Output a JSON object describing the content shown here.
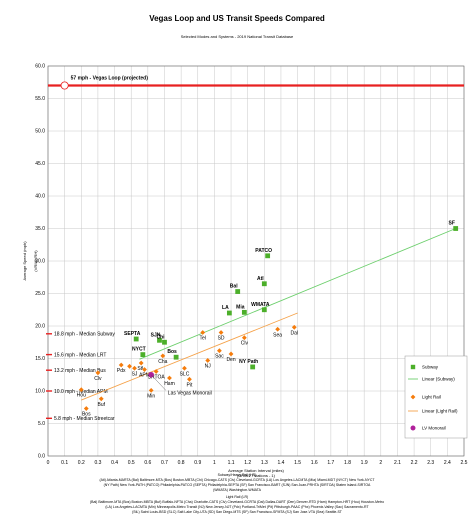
{
  "chart_data": {
    "type": "scatter",
    "title": "Vegas Loop and US Transit Speeds Compared",
    "subtitle": "Selected Modes and Systems - 2019 National Transit Database",
    "xlabel": "Average Station Interval (miles)",
    "xlabel2": "(DRM/2 / stations - 1)",
    "ylabel": "Average Speed (mph)",
    "ylabel2": "(VRM/VRH)",
    "xlim": [
      0,
      2.5
    ],
    "ylim": [
      0,
      60
    ],
    "xticks": [
      "0",
      "0.1",
      "0.2",
      "0.3",
      "0.4",
      "0.5",
      "0.6",
      "0.7",
      "0.8",
      "0.9",
      "1",
      "1.1",
      "1.2",
      "1.3",
      "1.4",
      "1.5",
      "1.6",
      "1.7",
      "1.8",
      "1.9",
      "2",
      "2.1",
      "2.2",
      "2.3",
      "2.4",
      "2.5"
    ],
    "yticks": [
      "0.0",
      "5.0",
      "10.0",
      "15.0",
      "20.0",
      "25.0",
      "30.0",
      "35.0",
      "40.0",
      "45.0",
      "50.0",
      "55.0",
      "60.0"
    ],
    "grid": true,
    "legend_position": "right",
    "series": [
      {
        "name": "Subway",
        "color": "#4caf2a",
        "points": [
          {
            "x": 0.53,
            "y": 18.0,
            "label": "SEPTA"
          },
          {
            "x": 0.57,
            "y": 15.6,
            "label": "NYCT"
          },
          {
            "x": 0.67,
            "y": 17.8,
            "label": "SJN"
          },
          {
            "x": 0.7,
            "y": 17.5,
            "label": "Chi"
          },
          {
            "x": 0.77,
            "y": 15.2,
            "label": "Bos"
          },
          {
            "x": 1.09,
            "y": 22.0,
            "label": "LA"
          },
          {
            "x": 1.14,
            "y": 25.3,
            "label": "Bal"
          },
          {
            "x": 1.18,
            "y": 22.1,
            "label": "Mia"
          },
          {
            "x": 1.3,
            "y": 26.5,
            "label": "Atl"
          },
          {
            "x": 1.3,
            "y": 22.5,
            "label": "WMATA"
          },
          {
            "x": 1.32,
            "y": 30.8,
            "label": "PATCO"
          },
          {
            "x": 1.23,
            "y": 13.7,
            "label": "NY Path"
          },
          {
            "x": 2.45,
            "y": 35.0,
            "label": "SF"
          }
        ]
      },
      {
        "name": "Light Rail",
        "color": "#f57c0c",
        "points": [
          {
            "x": 0.2,
            "y": 10.2,
            "label": "Hou"
          },
          {
            "x": 0.3,
            "y": 12.8,
            "label": "Clv"
          },
          {
            "x": 0.32,
            "y": 8.8,
            "label": "Buf"
          },
          {
            "x": 0.44,
            "y": 14.0,
            "label": "Pdx"
          },
          {
            "x": 0.49,
            "y": 13.8,
            "label": ""
          },
          {
            "x": 0.52,
            "y": 13.5,
            "label": "SJ"
          },
          {
            "x": 0.56,
            "y": 14.3,
            "label": "StL"
          },
          {
            "x": 0.58,
            "y": 13.3,
            "label": "APM"
          },
          {
            "x": 0.62,
            "y": 10.1,
            "label": "Min"
          },
          {
            "x": 0.65,
            "y": 13.0,
            "label": "SRTOA"
          },
          {
            "x": 0.69,
            "y": 15.4,
            "label": "Cha"
          },
          {
            "x": 0.73,
            "y": 12.0,
            "label": "Ham"
          },
          {
            "x": 0.85,
            "y": 11.8,
            "label": "Pit"
          },
          {
            "x": 0.93,
            "y": 19.0,
            "label": "Tel"
          },
          {
            "x": 0.96,
            "y": 14.7,
            "label": "NJ"
          },
          {
            "x": 1.03,
            "y": 16.2,
            "label": "Sac"
          },
          {
            "x": 1.1,
            "y": 15.7,
            "label": "Den"
          },
          {
            "x": 1.04,
            "y": 19.0,
            "label": "SD"
          },
          {
            "x": 1.18,
            "y": 18.2,
            "label": "Clv"
          },
          {
            "x": 1.38,
            "y": 19.5,
            "label": "Sea"
          },
          {
            "x": 1.48,
            "y": 19.8,
            "label": "Dal"
          },
          {
            "x": 0.82,
            "y": 13.5,
            "label": "SLC"
          },
          {
            "x": 0.23,
            "y": 7.3,
            "label": "Bos"
          }
        ]
      },
      {
        "name": "LV Monorail",
        "color": "#b0209b",
        "points": [
          {
            "x": 0.62,
            "y": 12.5,
            "label": ""
          }
        ]
      }
    ],
    "trendlines": [
      {
        "name": "Linear (Subway)",
        "color": "#6ccf6c",
        "from": [
          0.55,
          14.9
        ],
        "to": [
          2.45,
          35.0
        ]
      },
      {
        "name": "Linear (Light Rail)",
        "color": "#f5a24a",
        "from": [
          0.2,
          8.6
        ],
        "to": [
          1.5,
          22.0
        ]
      }
    ],
    "reference_lines": [
      {
        "label": "57 mph - Vegas Loop (projected)",
        "y": 57.0,
        "color": "#e82020",
        "type": "line"
      },
      {
        "label": "18.8 mph - Median Subway",
        "y": 18.8,
        "color": "#e82020",
        "type": "tick"
      },
      {
        "label": "15.6 mph - Median LRT",
        "y": 15.6,
        "color": "#e82020",
        "type": "tick"
      },
      {
        "label": "13.2 mph - Median Bus",
        "y": 13.2,
        "color": "#e82020",
        "type": "tick"
      },
      {
        "label": "10.0 mph - Median APM",
        "y": 10.0,
        "color": "#e82020",
        "type": "tick"
      },
      {
        "label": "5.8 mph - Median Streetcar",
        "y": 5.8,
        "color": "#e82020",
        "type": "tick"
      }
    ],
    "annotations": [
      {
        "text": "Las Vegas Monorail",
        "x": 0.72,
        "y": 9.8
      }
    ],
    "legend": [
      {
        "name": "Subway",
        "kind": "square",
        "color": "#4caf2a"
      },
      {
        "name": "Linear (Subway)",
        "kind": "line",
        "color": "#6ccf6c"
      },
      {
        "name": "Light Rail",
        "kind": "diamond",
        "color": "#f57c0c"
      },
      {
        "name": "Linear (Light Rail)",
        "kind": "line",
        "color": "#f5a24a"
      },
      {
        "name": "LV Monorail",
        "kind": "dot",
        "color": "#b0209b"
      }
    ],
    "notes": {
      "heavy_title": "Subway/Heavy Rail (HR)",
      "heavy_lines": [
        "(Atl) Atlanta-MARTA  (Bal) Baltimore-MTA  (Bos) Boston-MBTA  (Chi) Chicago-CATS  (Clv) Cleveland-GCRTA  (LA) Los Angeles-LACMTA  (Mia) Miami-MDT  (NYCT) New York-NYCT",
        "(NY Path) New York-PATH  (PATCO) Philadelphia-PATCO  (SEPTA) Philadelphia-SEPTA  (SF) San Francisco-BART  (SJN) San Juan-PRHTA  (SIRTOA) Staten Island-SIRTOA",
        "(WMATA) Washington-WMATA"
      ],
      "light_title": "Light Rail (LR)",
      "light_lines": [
        "(Bal) Baltimore-MTA  (Bos) Boston-MBTA  (Buf) Buffalo-NFTA  (Cha) Charlotte-CATS  (Clv) Cleveland-GCRTA  (Dal) Dallas-DART  (Den) Denver-RTD  (Ham) Hampton-HRT  (Hou) Houston-Metro",
        "(LA) Los Angeles-LACMTA  (Min) Minneapolis-Metro Transit  (NJ) New Jersey-NJT  (Pdx) Portland-TriMet  (Pit) Pittsburgh-PAAC  (Phx) Phoenix-Valley  (Sac) Sacramento-RT",
        "(StL) Saint Louis-BSD  (SLC) Salt Lake City-UTA  (SD) San Diego-MTS  (SF) San Francisco-SFMTA  (SJ) San Jose-VTA  (Sea) Seattle-ST"
      ]
    }
  }
}
